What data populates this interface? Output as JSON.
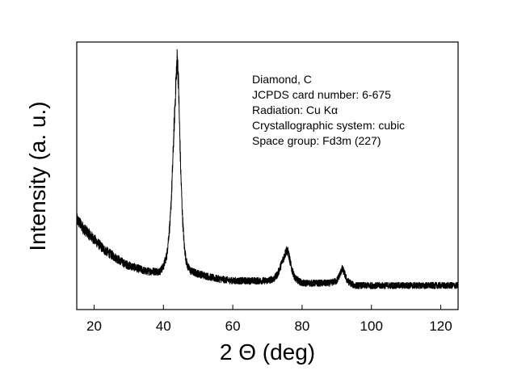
{
  "chart_data": {
    "type": "line",
    "xlabel": "2 Θ (deg)",
    "ylabel": "Intensity (a. u.)",
    "xlim": [
      15,
      125
    ],
    "ylim": [
      0,
      1
    ],
    "x_ticks": [
      20,
      40,
      60,
      80,
      100,
      120
    ],
    "x_tick_labels": [
      "20",
      "40",
      "60",
      "80",
      "100",
      "120"
    ],
    "y_tick_labels_shown": false,
    "grid": false,
    "legend": "none",
    "line_color": "#000000",
    "annotation_lines": [
      "Diamond, C",
      "JCPDS card number: 6-675",
      "Radiation: Cu Kα",
      "Crystallographic system: cubic",
      "Space group: Fd3m (227)"
    ],
    "series": [
      {
        "x": [
          15,
          17,
          19,
          21,
          23,
          25,
          27,
          29,
          31,
          33,
          35,
          37,
          39,
          40,
          41,
          42,
          42.5,
          43,
          43.5,
          43.8,
          44,
          44.3,
          44.6,
          45,
          45.5,
          46,
          46.5,
          47,
          48,
          50,
          55,
          60,
          65,
          70,
          72,
          73,
          74,
          75,
          75.5,
          76,
          77,
          78,
          80,
          85,
          88,
          90,
          91,
          91.5,
          92,
          93,
          95,
          100,
          110,
          120,
          125
        ],
        "y": [
          0.32,
          0.28,
          0.25,
          0.22,
          0.19,
          0.17,
          0.15,
          0.13,
          0.12,
          0.11,
          0.1,
          0.1,
          0.1,
          0.12,
          0.17,
          0.32,
          0.48,
          0.68,
          0.86,
          0.96,
          1.0,
          0.92,
          0.74,
          0.52,
          0.33,
          0.21,
          0.15,
          0.12,
          0.1,
          0.09,
          0.07,
          0.06,
          0.06,
          0.06,
          0.07,
          0.09,
          0.13,
          0.17,
          0.19,
          0.18,
          0.11,
          0.07,
          0.05,
          0.05,
          0.05,
          0.06,
          0.09,
          0.11,
          0.1,
          0.06,
          0.04,
          0.04,
          0.04,
          0.04,
          0.04
        ]
      }
    ]
  }
}
